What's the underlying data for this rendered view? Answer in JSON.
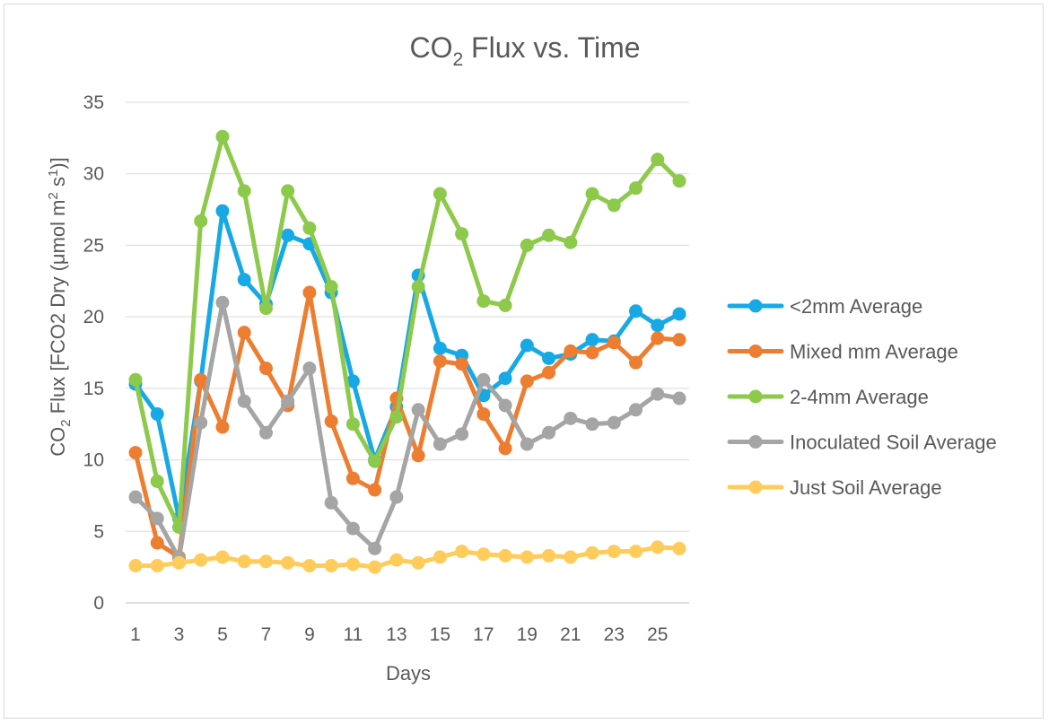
{
  "chart_data": {
    "type": "line",
    "title": {
      "prefix": "CO",
      "subscript": "2",
      "suffix": " Flux vs. Time"
    },
    "xlabel": "Days",
    "ylabel": {
      "prefix": "CO",
      "sub": "2",
      "mid": " Flux [FCO2 Dry (μmol m",
      "sup1": "2",
      "mid2": " s",
      "sup2": "1",
      "suffix": ")]"
    },
    "x": [
      1,
      2,
      3,
      4,
      5,
      6,
      7,
      8,
      9,
      10,
      11,
      12,
      13,
      14,
      15,
      16,
      17,
      18,
      19,
      20,
      21,
      22,
      23,
      24,
      25,
      26
    ],
    "x_tick_labels": [
      "1",
      "3",
      "5",
      "7",
      "9",
      "11",
      "13",
      "15",
      "17",
      "19",
      "21",
      "23",
      "25"
    ],
    "ylim": [
      0,
      35
    ],
    "y_ticks": [
      0,
      5,
      10,
      15,
      20,
      25,
      30,
      35
    ],
    "grid": true,
    "legend_position": "right",
    "series": [
      {
        "name": "<2mm Average",
        "color": "#17A9E5",
        "values": [
          15.3,
          13.2,
          5.9,
          15.5,
          27.4,
          22.6,
          20.9,
          25.7,
          25.1,
          21.7,
          15.5,
          10.0,
          13.7,
          22.9,
          17.8,
          17.3,
          14.5,
          15.7,
          18.0,
          17.1,
          17.4,
          18.4,
          18.3,
          20.4,
          19.4,
          20.2
        ]
      },
      {
        "name": "Mixed mm Average",
        "color": "#ED7D31",
        "values": [
          10.5,
          4.2,
          3.2,
          15.6,
          12.3,
          18.9,
          16.4,
          13.8,
          21.7,
          12.7,
          8.7,
          7.9,
          14.3,
          10.3,
          16.9,
          16.7,
          13.2,
          10.8,
          15.5,
          16.1,
          17.6,
          17.5,
          18.2,
          16.8,
          18.5,
          18.4
        ]
      },
      {
        "name": "2-4mm Average",
        "color": "#8DC94A",
        "values": [
          15.6,
          8.5,
          5.3,
          26.7,
          32.6,
          28.8,
          20.6,
          28.8,
          26.2,
          22.1,
          12.5,
          9.9,
          13.0,
          22.1,
          28.6,
          25.8,
          21.1,
          20.8,
          25.0,
          25.7,
          25.2,
          28.6,
          27.8,
          29.0,
          31.0,
          29.5
        ]
      },
      {
        "name": "Inoculated Soil Average",
        "color": "#A5A5A5",
        "values": [
          7.4,
          5.9,
          3.1,
          12.6,
          21.0,
          14.1,
          11.9,
          14.1,
          16.4,
          7.0,
          5.2,
          3.8,
          7.4,
          13.5,
          11.1,
          11.8,
          15.6,
          13.8,
          11.1,
          11.9,
          12.9,
          12.5,
          12.6,
          13.5,
          14.6,
          14.3
        ]
      },
      {
        "name": "Just Soil Average",
        "color": "#FFCC5C",
        "values": [
          2.6,
          2.6,
          2.8,
          3.0,
          3.2,
          2.9,
          2.9,
          2.8,
          2.6,
          2.6,
          2.7,
          2.5,
          3.0,
          2.8,
          3.2,
          3.6,
          3.4,
          3.3,
          3.2,
          3.3,
          3.2,
          3.5,
          3.6,
          3.6,
          3.9,
          3.8
        ]
      }
    ]
  }
}
